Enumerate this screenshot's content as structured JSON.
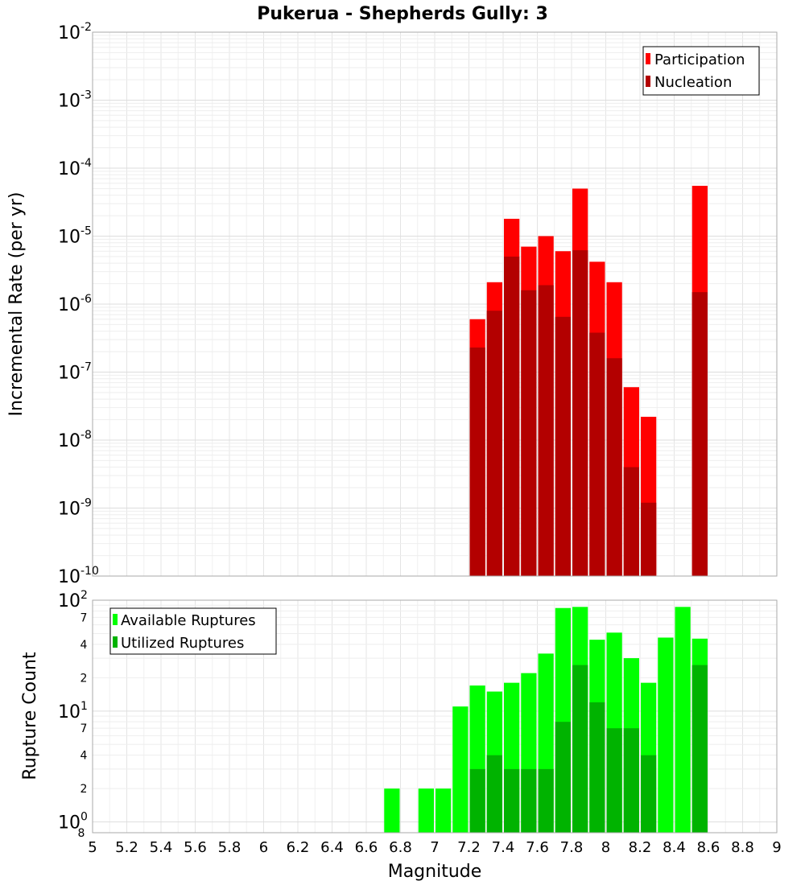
{
  "chart_data": [
    {
      "type": "bar",
      "title": "Pukerua - Shepherds Gully: 3",
      "xlabel": "",
      "ylabel": "Incremental Rate (per yr)",
      "yscale": "log",
      "ylim": [
        1e-10,
        0.01
      ],
      "xlim": [
        5,
        9
      ],
      "grid": true,
      "legend_position": "top-right",
      "bar_width": 0.1,
      "y_ticks": [
        {
          "mant": "10",
          "exp": "-10"
        },
        {
          "mant": "10",
          "exp": "-9"
        },
        {
          "mant": "10",
          "exp": "-8"
        },
        {
          "mant": "10",
          "exp": "-7"
        },
        {
          "mant": "10",
          "exp": "-6"
        },
        {
          "mant": "10",
          "exp": "-5"
        },
        {
          "mant": "10",
          "exp": "-4"
        },
        {
          "mant": "10",
          "exp": "-3"
        },
        {
          "mant": "10",
          "exp": "-2"
        }
      ],
      "series": [
        {
          "name": "Participation",
          "color": "#ff0000",
          "x": [
            7.25,
            7.35,
            7.45,
            7.55,
            7.65,
            7.75,
            7.85,
            7.95,
            8.05,
            8.15,
            8.25,
            8.55
          ],
          "values": [
            6e-07,
            2.1e-06,
            1.8e-05,
            7e-06,
            1e-05,
            6e-06,
            5e-05,
            4.2e-06,
            2.1e-06,
            6e-08,
            2.2e-08,
            5.5e-05
          ]
        },
        {
          "name": "Nucleation",
          "color": "#b30000",
          "x": [
            7.25,
            7.35,
            7.45,
            7.55,
            7.65,
            7.75,
            7.85,
            7.95,
            8.05,
            8.15,
            8.25,
            8.55
          ],
          "values": [
            2.3e-07,
            8e-07,
            5e-06,
            1.6e-06,
            1.9e-06,
            6.5e-07,
            6.2e-06,
            3.8e-07,
            1.6e-07,
            4e-09,
            1.2e-09,
            1.5e-06
          ]
        }
      ]
    },
    {
      "type": "bar",
      "xlabel": "Magnitude",
      "ylabel": "Rupture Count",
      "yscale": "log",
      "ylim": [
        0.8,
        100
      ],
      "xlim": [
        5,
        9
      ],
      "grid": true,
      "legend_position": "top-left",
      "bar_width": 0.1,
      "x_ticks": [
        "5",
        "5.2",
        "5.4",
        "5.6",
        "5.8",
        "6",
        "6.2",
        "6.4",
        "6.6",
        "6.8",
        "7",
        "7.2",
        "7.4",
        "7.6",
        "7.8",
        "8",
        "8.2",
        "8.4",
        "8.6",
        "8.8",
        "9"
      ],
      "y_major_ticks": [
        {
          "mant": "10",
          "exp": "0"
        },
        {
          "mant": "10",
          "exp": "1"
        },
        {
          "mant": "10",
          "exp": "2"
        }
      ],
      "y_minor_ticks": [
        {
          "value": 2,
          "label": "2"
        },
        {
          "value": 4,
          "label": "4"
        },
        {
          "value": 7,
          "label": "7"
        },
        {
          "value": 20,
          "label": "2"
        },
        {
          "value": 40,
          "label": "4"
        },
        {
          "value": 70,
          "label": "7"
        }
      ],
      "y_bottom_label": "8",
      "series": [
        {
          "name": "Available Ruptures",
          "color": "#00ff00",
          "x": [
            6.75,
            6.95,
            7.05,
            7.15,
            7.25,
            7.35,
            7.45,
            7.55,
            7.65,
            7.75,
            7.85,
            7.95,
            8.05,
            8.15,
            8.25,
            8.35,
            8.45,
            8.55
          ],
          "values": [
            2,
            2,
            2,
            11,
            17,
            15,
            18,
            22,
            33,
            85,
            87,
            44,
            51,
            30,
            18,
            46,
            87,
            45
          ]
        },
        {
          "name": "Utilized Ruptures",
          "color": "#00b300",
          "x": [
            7.25,
            7.35,
            7.45,
            7.55,
            7.65,
            7.75,
            7.85,
            7.95,
            8.05,
            8.15,
            8.25,
            8.55
          ],
          "values": [
            3,
            4,
            3,
            3,
            3,
            8,
            26,
            12,
            7,
            7,
            4,
            26
          ]
        }
      ]
    }
  ]
}
